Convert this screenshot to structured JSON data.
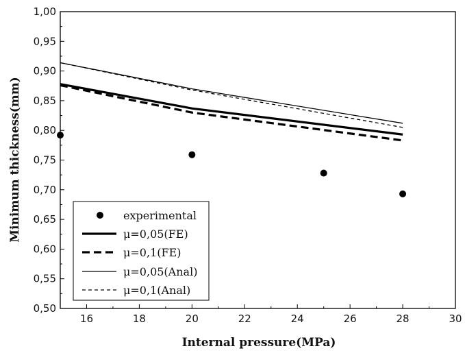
{
  "chart_data": {
    "type": "line",
    "xlabel": "Internal pressure(MPa)",
    "ylabel": "Minimum thickness(mm)",
    "xlim": [
      15,
      30
    ],
    "ylim": [
      0.5,
      1.0
    ],
    "x_ticks": [
      16,
      18,
      20,
      22,
      24,
      26,
      28,
      30
    ],
    "y_ticks": [
      "0,50",
      "0,55",
      "0,60",
      "0,65",
      "0,70",
      "0,75",
      "0,80",
      "0,85",
      "0,90",
      "0,95",
      "1,00"
    ],
    "grid": false,
    "legend_position": "bottom-left",
    "series": [
      {
        "name": "experimental",
        "style": "marker",
        "color": "#000000",
        "x": [
          15,
          20,
          25,
          28
        ],
        "y": [
          0.792,
          0.759,
          0.728,
          0.693
        ]
      },
      {
        "name": "μ=0,05(FE)",
        "style": "thick-solid",
        "color": "#000000",
        "x": [
          15,
          20,
          28
        ],
        "y": [
          0.878,
          0.837,
          0.793
        ]
      },
      {
        "name": "μ=0,1(FE)",
        "style": "thick-dashed",
        "color": "#000000",
        "x": [
          15,
          20,
          28
        ],
        "y": [
          0.876,
          0.83,
          0.783
        ]
      },
      {
        "name": "μ=0,05(Anal)",
        "style": "thin-solid",
        "color": "#000000",
        "x": [
          15,
          20,
          28
        ],
        "y": [
          0.914,
          0.87,
          0.812
        ]
      },
      {
        "name": "μ=0,1(Anal)",
        "style": "thin-dashed",
        "color": "#000000",
        "x": [
          15,
          20,
          28
        ],
        "y": [
          0.914,
          0.868,
          0.805
        ]
      }
    ]
  }
}
